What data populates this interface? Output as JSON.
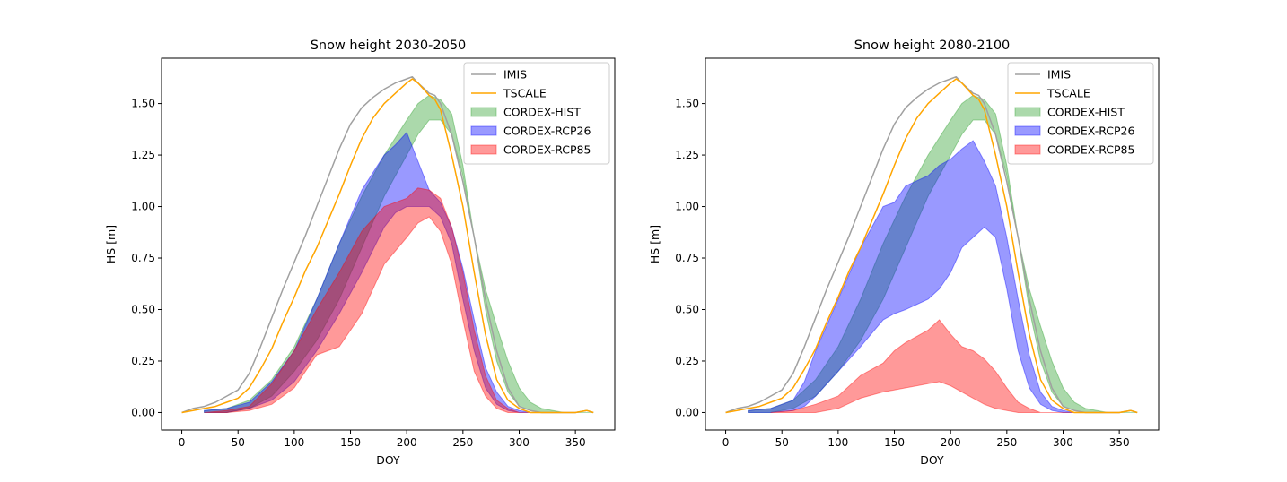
{
  "chart_data": [
    {
      "type": "area",
      "title": "Snow height 2030-2050",
      "xlabel": "DOY",
      "ylabel": "HS [m]",
      "xlim": [
        -18,
        385
      ],
      "ylim": [
        -0.085,
        1.72
      ],
      "xticks": [
        "0",
        "50",
        "100",
        "150",
        "200",
        "250",
        "300",
        "350"
      ],
      "yticks": [
        "0.00",
        "0.25",
        "0.50",
        "0.75",
        "1.00",
        "1.25",
        "1.50"
      ],
      "legend": {
        "position": "top-right",
        "entries": [
          "IMIS",
          "TSCALE",
          "CORDEX-HIST",
          "CORDEX-RCP26",
          "CORDEX-RCP85"
        ]
      },
      "lines": [
        {
          "name": "IMIS",
          "color": "#a0a0a0",
          "x": [
            0,
            10,
            20,
            30,
            40,
            50,
            60,
            70,
            80,
            90,
            100,
            110,
            120,
            130,
            140,
            150,
            160,
            170,
            180,
            190,
            200,
            205,
            210,
            220,
            225,
            230,
            240,
            250,
            260,
            270,
            280,
            290,
            300,
            310,
            320,
            340,
            350,
            360,
            366
          ],
          "y": [
            0.0,
            0.02,
            0.03,
            0.05,
            0.08,
            0.11,
            0.19,
            0.32,
            0.46,
            0.6,
            0.73,
            0.86,
            1.0,
            1.14,
            1.28,
            1.4,
            1.48,
            1.53,
            1.57,
            1.6,
            1.62,
            1.63,
            1.6,
            1.55,
            1.54,
            1.5,
            1.35,
            1.12,
            0.85,
            0.55,
            0.3,
            0.12,
            0.03,
            0.01,
            0.0,
            0.0,
            0.0,
            0.01,
            0.0
          ]
        },
        {
          "name": "TSCALE",
          "color": "#ffa500",
          "x": [
            0,
            10,
            20,
            30,
            40,
            50,
            60,
            70,
            80,
            90,
            100,
            110,
            120,
            130,
            140,
            150,
            160,
            170,
            180,
            190,
            200,
            205,
            210,
            220,
            225,
            230,
            240,
            250,
            260,
            270,
            280,
            290,
            300,
            310,
            320,
            340,
            350,
            360,
            366
          ],
          "y": [
            0.0,
            0.01,
            0.02,
            0.03,
            0.05,
            0.07,
            0.12,
            0.21,
            0.31,
            0.44,
            0.56,
            0.69,
            0.8,
            0.93,
            1.06,
            1.2,
            1.33,
            1.43,
            1.5,
            1.55,
            1.6,
            1.62,
            1.6,
            1.54,
            1.52,
            1.47,
            1.25,
            1.0,
            0.68,
            0.38,
            0.16,
            0.06,
            0.02,
            0.0,
            0.0,
            0.0,
            0.0,
            0.01,
            0.0
          ]
        }
      ],
      "bands": [
        {
          "name": "CORDEX-HIST",
          "color": "#2ca02c",
          "x": [
            20,
            40,
            60,
            80,
            100,
            120,
            140,
            160,
            180,
            200,
            210,
            220,
            230,
            240,
            250,
            260,
            270,
            280,
            290,
            300,
            310,
            320,
            330,
            340,
            350,
            360,
            366
          ],
          "lower": [
            0.0,
            0.0,
            0.02,
            0.08,
            0.2,
            0.35,
            0.55,
            0.8,
            1.05,
            1.25,
            1.35,
            1.42,
            1.42,
            1.35,
            1.15,
            0.85,
            0.5,
            0.25,
            0.1,
            0.03,
            0.01,
            0.0,
            0.0,
            0.0,
            0.0,
            0.0,
            0.0
          ],
          "upper": [
            0.01,
            0.02,
            0.06,
            0.16,
            0.32,
            0.55,
            0.82,
            1.05,
            1.25,
            1.42,
            1.5,
            1.54,
            1.52,
            1.45,
            1.2,
            0.85,
            0.6,
            0.42,
            0.25,
            0.12,
            0.05,
            0.02,
            0.01,
            0.0,
            0.0,
            0.0,
            0.0
          ]
        },
        {
          "name": "CORDEX-RCP26",
          "color": "#0000ff",
          "x": [
            20,
            40,
            60,
            80,
            100,
            120,
            140,
            160,
            180,
            190,
            200,
            210,
            220,
            230,
            240,
            250,
            260,
            270,
            280,
            290,
            300,
            310,
            320,
            330
          ],
          "lower": [
            0.0,
            0.0,
            0.02,
            0.06,
            0.15,
            0.3,
            0.48,
            0.68,
            0.9,
            0.97,
            1.0,
            1.0,
            1.0,
            0.95,
            0.82,
            0.55,
            0.3,
            0.12,
            0.04,
            0.01,
            0.0,
            0.0,
            0.0,
            0.0
          ],
          "upper": [
            0.01,
            0.02,
            0.05,
            0.15,
            0.3,
            0.55,
            0.82,
            1.08,
            1.25,
            1.3,
            1.36,
            1.22,
            1.08,
            1.02,
            0.9,
            0.7,
            0.45,
            0.22,
            0.1,
            0.03,
            0.01,
            0.0,
            0.0,
            0.0
          ]
        },
        {
          "name": "CORDEX-RCP85",
          "color": "#ff0000",
          "x": [
            20,
            40,
            60,
            80,
            100,
            120,
            140,
            160,
            180,
            200,
            210,
            220,
            230,
            240,
            250,
            260,
            270,
            280,
            290,
            300,
            310,
            320,
            330
          ],
          "lower": [
            0.0,
            0.0,
            0.01,
            0.04,
            0.12,
            0.28,
            0.32,
            0.48,
            0.72,
            0.85,
            0.92,
            0.95,
            0.88,
            0.72,
            0.45,
            0.2,
            0.08,
            0.02,
            0.0,
            0.0,
            0.0,
            0.0,
            0.0
          ],
          "upper": [
            0.0,
            0.01,
            0.03,
            0.14,
            0.3,
            0.5,
            0.68,
            0.88,
            1.0,
            1.04,
            1.09,
            1.08,
            1.04,
            0.9,
            0.68,
            0.4,
            0.18,
            0.06,
            0.02,
            0.0,
            0.0,
            0.0,
            0.0
          ]
        }
      ]
    },
    {
      "type": "area",
      "title": "Snow height 2080-2100",
      "xlabel": "DOY",
      "ylabel": "HS [m]",
      "xlim": [
        -18,
        385
      ],
      "ylim": [
        -0.085,
        1.72
      ],
      "xticks": [
        "0",
        "50",
        "100",
        "150",
        "200",
        "250",
        "300",
        "350"
      ],
      "yticks": [
        "0.00",
        "0.25",
        "0.50",
        "0.75",
        "1.00",
        "1.25",
        "1.50"
      ],
      "legend": {
        "position": "top-right",
        "entries": [
          "IMIS",
          "TSCALE",
          "CORDEX-HIST",
          "CORDEX-RCP26",
          "CORDEX-RCP85"
        ]
      },
      "lines": [
        {
          "name": "IMIS",
          "color": "#a0a0a0",
          "x": [
            0,
            10,
            20,
            30,
            40,
            50,
            60,
            70,
            80,
            90,
            100,
            110,
            120,
            130,
            140,
            150,
            160,
            170,
            180,
            190,
            200,
            205,
            210,
            220,
            225,
            230,
            240,
            250,
            260,
            270,
            280,
            290,
            300,
            310,
            320,
            340,
            350,
            360,
            366
          ],
          "y": [
            0.0,
            0.02,
            0.03,
            0.05,
            0.08,
            0.11,
            0.19,
            0.32,
            0.46,
            0.6,
            0.73,
            0.86,
            1.0,
            1.14,
            1.28,
            1.4,
            1.48,
            1.53,
            1.57,
            1.6,
            1.62,
            1.63,
            1.6,
            1.55,
            1.54,
            1.5,
            1.35,
            1.12,
            0.85,
            0.55,
            0.3,
            0.12,
            0.03,
            0.01,
            0.0,
            0.0,
            0.0,
            0.01,
            0.0
          ]
        },
        {
          "name": "TSCALE",
          "color": "#ffa500",
          "x": [
            0,
            10,
            20,
            30,
            40,
            50,
            60,
            70,
            80,
            90,
            100,
            110,
            120,
            130,
            140,
            150,
            160,
            170,
            180,
            190,
            200,
            205,
            210,
            220,
            225,
            230,
            240,
            250,
            260,
            270,
            280,
            290,
            300,
            310,
            320,
            340,
            350,
            360,
            366
          ],
          "y": [
            0.0,
            0.01,
            0.02,
            0.03,
            0.05,
            0.07,
            0.12,
            0.21,
            0.31,
            0.44,
            0.56,
            0.69,
            0.8,
            0.93,
            1.06,
            1.2,
            1.33,
            1.43,
            1.5,
            1.55,
            1.6,
            1.62,
            1.6,
            1.54,
            1.52,
            1.47,
            1.25,
            1.0,
            0.68,
            0.38,
            0.16,
            0.06,
            0.02,
            0.0,
            0.0,
            0.0,
            0.0,
            0.01,
            0.0
          ]
        }
      ],
      "bands": [
        {
          "name": "CORDEX-HIST",
          "color": "#2ca02c",
          "x": [
            20,
            40,
            60,
            80,
            100,
            120,
            140,
            160,
            180,
            200,
            210,
            220,
            230,
            240,
            250,
            260,
            270,
            280,
            290,
            300,
            310,
            320,
            330,
            340,
            350,
            360,
            366
          ],
          "lower": [
            0.0,
            0.0,
            0.02,
            0.08,
            0.2,
            0.35,
            0.55,
            0.8,
            1.05,
            1.25,
            1.35,
            1.42,
            1.42,
            1.35,
            1.15,
            0.85,
            0.5,
            0.25,
            0.1,
            0.03,
            0.01,
            0.0,
            0.0,
            0.0,
            0.0,
            0.0,
            0.0
          ],
          "upper": [
            0.01,
            0.02,
            0.06,
            0.16,
            0.32,
            0.55,
            0.82,
            1.05,
            1.25,
            1.42,
            1.5,
            1.54,
            1.52,
            1.45,
            1.2,
            0.85,
            0.6,
            0.42,
            0.25,
            0.12,
            0.05,
            0.02,
            0.01,
            0.0,
            0.0,
            0.0,
            0.0
          ]
        },
        {
          "name": "CORDEX-RCP26",
          "color": "#0000ff",
          "x": [
            20,
            40,
            60,
            70,
            80,
            100,
            120,
            140,
            150,
            160,
            180,
            190,
            200,
            210,
            220,
            230,
            240,
            250,
            260,
            270,
            280,
            290,
            300,
            310,
            320
          ],
          "lower": [
            0.0,
            0.0,
            0.01,
            0.03,
            0.08,
            0.2,
            0.32,
            0.45,
            0.48,
            0.5,
            0.55,
            0.6,
            0.68,
            0.8,
            0.85,
            0.9,
            0.85,
            0.6,
            0.3,
            0.12,
            0.04,
            0.01,
            0.0,
            0.0,
            0.0
          ],
          "upper": [
            0.01,
            0.02,
            0.06,
            0.15,
            0.3,
            0.55,
            0.8,
            1.0,
            1.02,
            1.1,
            1.15,
            1.2,
            1.23,
            1.28,
            1.32,
            1.22,
            1.1,
            0.85,
            0.55,
            0.28,
            0.1,
            0.03,
            0.01,
            0.0,
            0.0
          ]
        },
        {
          "name": "CORDEX-RCP85",
          "color": "#ff0000",
          "x": [
            40,
            60,
            80,
            100,
            120,
            140,
            150,
            160,
            170,
            180,
            190,
            200,
            210,
            220,
            230,
            240,
            250,
            260,
            270,
            280,
            290,
            300,
            310
          ],
          "lower": [
            0.0,
            0.0,
            0.0,
            0.02,
            0.07,
            0.1,
            0.11,
            0.12,
            0.13,
            0.14,
            0.15,
            0.13,
            0.1,
            0.07,
            0.04,
            0.02,
            0.01,
            0.0,
            0.0,
            0.0,
            0.0,
            0.0,
            0.0
          ],
          "upper": [
            0.0,
            0.01,
            0.04,
            0.08,
            0.18,
            0.24,
            0.3,
            0.34,
            0.37,
            0.4,
            0.45,
            0.38,
            0.32,
            0.3,
            0.26,
            0.2,
            0.12,
            0.05,
            0.02,
            0.0,
            0.0,
            0.0,
            0.0
          ]
        }
      ]
    }
  ]
}
